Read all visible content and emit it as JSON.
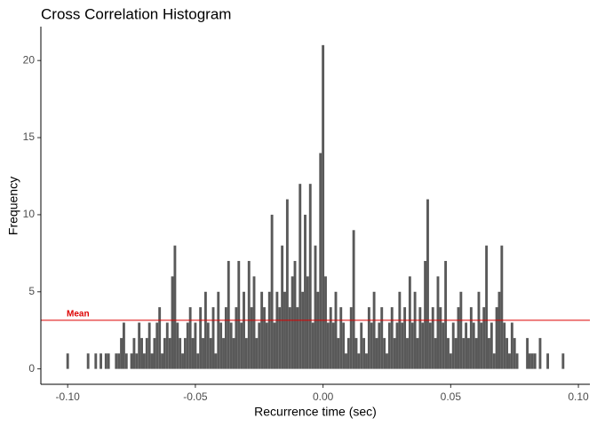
{
  "chart_data": {
    "type": "histogram",
    "title": "Cross Correlation Histogram",
    "x_label": "Recurrence time (sec)",
    "y_label": "Frequency",
    "bins": [
      -0.1005,
      -0.0995,
      -0.0985,
      -0.0975,
      -0.0965,
      -0.0955,
      -0.0945,
      -0.0935,
      -0.0925,
      -0.0915,
      -0.0905,
      -0.0895,
      -0.0885,
      -0.0875,
      -0.0865,
      -0.0855,
      -0.0845,
      -0.0835,
      -0.0825,
      -0.0815,
      -0.0805,
      -0.0795,
      -0.0785,
      -0.0775,
      -0.0765,
      -0.0755,
      -0.0745,
      -0.0735,
      -0.0725,
      -0.0715,
      -0.0705,
      -0.0695,
      -0.0685,
      -0.0675,
      -0.0665,
      -0.0655,
      -0.0645,
      -0.0635,
      -0.0625,
      -0.0615,
      -0.0605,
      -0.0595,
      -0.0585,
      -0.0575,
      -0.0565,
      -0.0555,
      -0.0545,
      -0.0535,
      -0.0525,
      -0.0515,
      -0.0505,
      -0.0495,
      -0.0485,
      -0.0475,
      -0.0465,
      -0.0455,
      -0.0445,
      -0.0435,
      -0.0425,
      -0.0415,
      -0.0405,
      -0.0395,
      -0.0385,
      -0.0375,
      -0.0365,
      -0.0355,
      -0.0345,
      -0.0335,
      -0.0325,
      -0.0315,
      -0.0305,
      -0.0295,
      -0.0285,
      -0.0275,
      -0.0265,
      -0.0255,
      -0.0245,
      -0.0235,
      -0.0225,
      -0.0215,
      -0.0205,
      -0.0195,
      -0.0185,
      -0.0175,
      -0.0165,
      -0.0155,
      -0.0145,
      -0.0135,
      -0.0125,
      -0.0115,
      -0.0105,
      -0.0095,
      -0.0085,
      -0.0075,
      -0.0065,
      -0.0055,
      -0.0045,
      -0.0035,
      -0.0025,
      -0.0015,
      -0.0005,
      0.0005,
      0.0015,
      0.0025,
      0.0035,
      0.0045,
      0.0055,
      0.0065,
      0.0075,
      0.0085,
      0.0095,
      0.0105,
      0.0115,
      0.0125,
      0.0135,
      0.0145,
      0.0155,
      0.0165,
      0.0175,
      0.0185,
      0.0195,
      0.0205,
      0.0215,
      0.0225,
      0.0235,
      0.0245,
      0.0255,
      0.0265,
      0.0275,
      0.0285,
      0.0295,
      0.0305,
      0.0315,
      0.0325,
      0.0335,
      0.0345,
      0.0355,
      0.0365,
      0.0375,
      0.0385,
      0.0395,
      0.0405,
      0.0415,
      0.0425,
      0.0435,
      0.0445,
      0.0455,
      0.0465,
      0.0475,
      0.0485,
      0.0495,
      0.0505,
      0.0515,
      0.0525,
      0.0535,
      0.0545,
      0.0555,
      0.0565,
      0.0575,
      0.0585,
      0.0595,
      0.0605,
      0.0615,
      0.0625,
      0.0635,
      0.0645,
      0.0655,
      0.0665,
      0.0675,
      0.0685,
      0.0695,
      0.0705,
      0.0715,
      0.0725,
      0.0735,
      0.0745,
      0.0755,
      0.0765,
      0.0775,
      0.0785,
      0.0795,
      0.0805,
      0.0815,
      0.0825,
      0.0835,
      0.0845,
      0.0855,
      0.0865,
      0.0875,
      0.0885,
      0.0895,
      0.0905,
      0.0915,
      0.0925,
      0.0935,
      0.0945
    ],
    "values": [
      1,
      0,
      0,
      0,
      0,
      0,
      0,
      0,
      1,
      0,
      0,
      1,
      0,
      1,
      0,
      1,
      1,
      0,
      0,
      1,
      1,
      2,
      3,
      1,
      0,
      1,
      2,
      1,
      3,
      2,
      1,
      2,
      3,
      1,
      2,
      3,
      4,
      1,
      2,
      3,
      2,
      6,
      8,
      3,
      2,
      1,
      2,
      3,
      4,
      2,
      3,
      1,
      4,
      2,
      5,
      3,
      2,
      4,
      1,
      5,
      3,
      2,
      4,
      7,
      3,
      2,
      4,
      7,
      3,
      5,
      2,
      7,
      4,
      6,
      2,
      3,
      5,
      4,
      3,
      5,
      10,
      3,
      5,
      4,
      8,
      5,
      11,
      4,
      6,
      7,
      4,
      12,
      5,
      10,
      6,
      12,
      3,
      8,
      5,
      14,
      21,
      6,
      3,
      4,
      3,
      5,
      2,
      4,
      3,
      1,
      2,
      4,
      9,
      2,
      1,
      3,
      2,
      1,
      4,
      3,
      5,
      2,
      3,
      4,
      2,
      1,
      3,
      4,
      2,
      3,
      5,
      3,
      4,
      2,
      6,
      3,
      5,
      2,
      4,
      3,
      7,
      11,
      3,
      4,
      2,
      6,
      4,
      3,
      7,
      2,
      1,
      3,
      2,
      4,
      5,
      2,
      3,
      2,
      4,
      3,
      2,
      5,
      3,
      4,
      8,
      2,
      3,
      1,
      4,
      5,
      8,
      3,
      2,
      1,
      3,
      2,
      1,
      0,
      0,
      0,
      2,
      1,
      1,
      1,
      0,
      2,
      0,
      0,
      1,
      0,
      0,
      0,
      0,
      0,
      1
    ],
    "color": "#595959",
    "mean_line": {
      "value": 3.15,
      "label": "Mean",
      "color": "#dd0000"
    },
    "xlim": [
      -0.1105,
      0.1045
    ],
    "xticks": [
      {
        "value": -0.1,
        "label": "-0.10"
      },
      {
        "value": -0.05,
        "label": "-0.05"
      },
      {
        "value": 0,
        "label": "0.00"
      },
      {
        "value": 0.05,
        "label": "0.05"
      },
      {
        "value": 0.1,
        "label": "0.10"
      }
    ],
    "ylim": [
      -1.0,
      22.2
    ],
    "yticks": [
      0,
      5,
      10,
      15,
      20
    ],
    "grid": false
  }
}
